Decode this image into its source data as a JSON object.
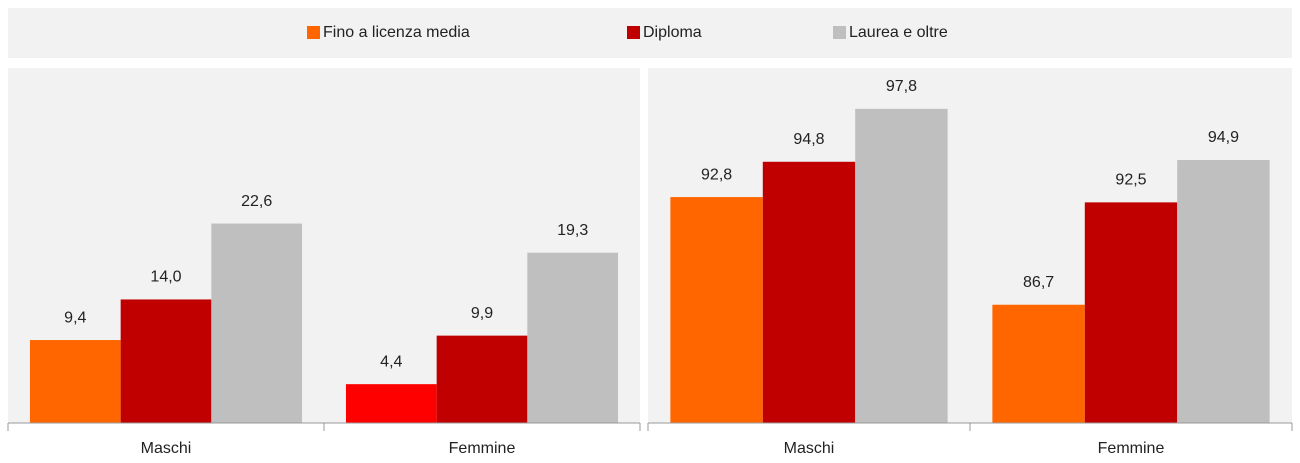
{
  "chart_data": [
    {
      "type": "bar",
      "categories": [
        "Maschi",
        "Femmine"
      ],
      "ylim": [
        0,
        40
      ],
      "series": [
        {
          "name": "Fino a licenza media",
          "color": "#ff6600",
          "colors": [
            "#ff6600",
            "#ff0000"
          ],
          "values": [
            9.4,
            4.4
          ],
          "value_labels": [
            "9,4",
            "4,4"
          ]
        },
        {
          "name": "Diploma",
          "color": "#c00000",
          "values": [
            14.0,
            9.9
          ],
          "value_labels": [
            "14,0",
            "9,9"
          ]
        },
        {
          "name": "Laurea e oltre",
          "color": "#bfbfbf",
          "values": [
            22.6,
            19.3
          ],
          "value_labels": [
            "22,6",
            "19,3"
          ]
        }
      ]
    },
    {
      "type": "bar",
      "categories": [
        "Maschi",
        "Femmine"
      ],
      "ylim": [
        80,
        100
      ],
      "series": [
        {
          "color": "#ff6600",
          "values": [
            92.8,
            86.7
          ],
          "value_labels": [
            "92,8",
            "86,7"
          ]
        },
        {
          "color": "#c00000",
          "values": [
            94.8,
            92.5
          ],
          "value_labels": [
            "94,8",
            "92,5"
          ]
        },
        {
          "color": "#bfbfbf",
          "values": [
            97.8,
            94.9
          ],
          "value_labels": [
            "97,8",
            "94,9"
          ]
        }
      ]
    }
  ]
}
